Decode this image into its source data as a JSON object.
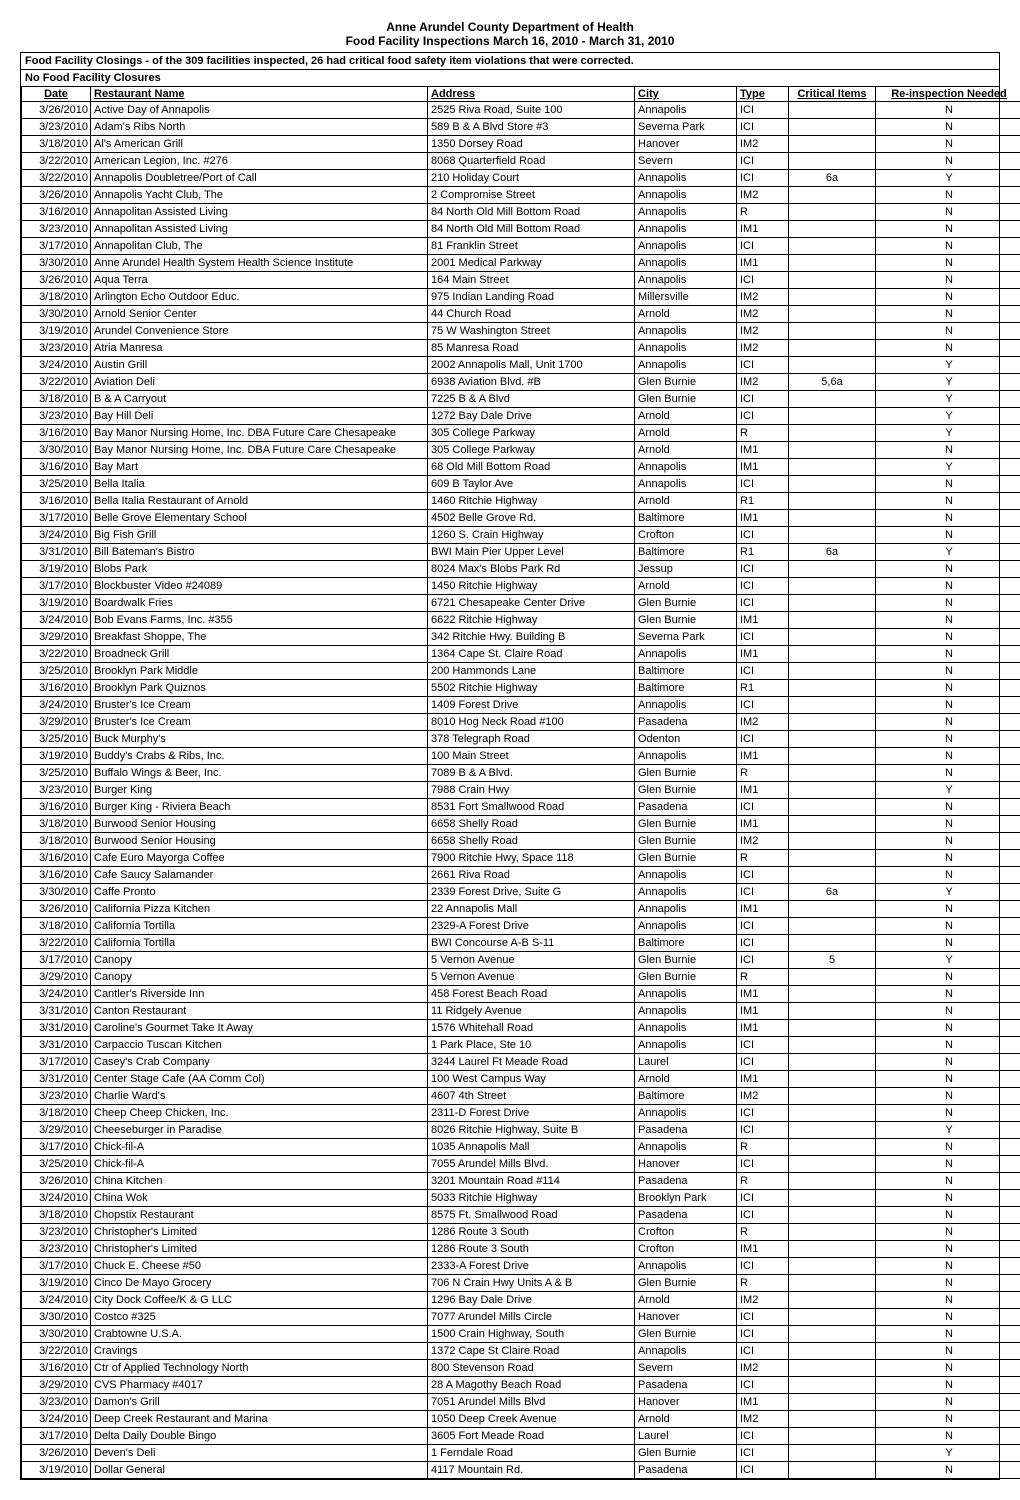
{
  "header": {
    "title1": "Anne Arundel County Department of Health",
    "title2": "Food Facility Inspections March 16, 2010 - March 31, 2010",
    "closings": "Food Facility Closings - of the 309 facilities inspected, 26 had critical food safety item violations that were corrected.",
    "noclose": "No Food Facility Closures"
  },
  "columns": {
    "date": "Date",
    "name": "Restaurant Name",
    "addr": "Address",
    "city": "City",
    "type": "Type",
    "crit": "Critical Items",
    "reinsp": "Re-inspection Needed"
  },
  "rows": [
    [
      "3/26/2010",
      "Active Day of Annapolis",
      "2525 Riva Road, Suite 100",
      "Annapolis",
      "ICI",
      "",
      "N"
    ],
    [
      "3/23/2010",
      "Adam's Ribs North",
      "589 B & A Blvd Store #3",
      "Severna Park",
      "ICI",
      "",
      "N"
    ],
    [
      "3/18/2010",
      "Al's American Grill",
      "1350 Dorsey Road",
      "Hanover",
      "IM2",
      "",
      "N"
    ],
    [
      "3/22/2010",
      "American Legion, Inc. #276",
      "8068 Quarterfield Road",
      "Severn",
      "ICI",
      "",
      "N"
    ],
    [
      "3/22/2010",
      "Annapolis Doubletree/Port of  Call",
      "210 Holiday Court",
      "Annapolis",
      "ICI",
      "6a",
      "Y"
    ],
    [
      "3/26/2010",
      "Annapolis Yacht Club, The",
      "2 Compromise Street",
      "Annapolis",
      "IM2",
      "",
      "N"
    ],
    [
      "3/16/2010",
      "Annapolitan Assisted Living",
      "84 North Old Mill Bottom Road",
      "Annapolis",
      "R",
      "",
      "N"
    ],
    [
      "3/23/2010",
      "Annapolitan Assisted Living",
      "84 North Old Mill Bottom Road",
      "Annapolis",
      "IM1",
      "",
      "N"
    ],
    [
      "3/17/2010",
      "Annapolitan Club, The",
      "81 Franklin Street",
      "Annapolis",
      "ICI",
      "",
      "N"
    ],
    [
      "3/30/2010",
      "Anne Arundel Health System Health Science Institute",
      "2001 Medical Parkway",
      "Annapolis",
      "IM1",
      "",
      "N"
    ],
    [
      "3/26/2010",
      "Aqua Terra",
      "164 Main Street",
      "Annapolis",
      "ICI",
      "",
      "N"
    ],
    [
      "3/18/2010",
      "Arlington Echo Outdoor Educ.",
      "975 Indian Landing Road",
      "Millersville",
      "IM2",
      "",
      "N"
    ],
    [
      "3/30/2010",
      "Arnold Senior Center",
      "44 Church Road",
      "Arnold",
      "IM2",
      "",
      "N"
    ],
    [
      "3/19/2010",
      "Arundel Convenience Store",
      "75 W Washington Street",
      "Annapolis",
      "IM2",
      "",
      "N"
    ],
    [
      "3/23/2010",
      "Atria Manresa",
      "85 Manresa Road",
      "Annapolis",
      "IM2",
      "",
      "N"
    ],
    [
      "3/24/2010",
      "Austin Grill",
      "2002 Annapolis Mall, Unit 1700",
      "Annapolis",
      "ICI",
      "",
      "Y"
    ],
    [
      "3/22/2010",
      "Aviation Deli",
      "6938 Aviation Blvd. #B",
      "Glen Burnie",
      "IM2",
      "5,6a",
      "Y"
    ],
    [
      "3/18/2010",
      "B & A Carryout",
      "7225 B & A Blvd",
      "Glen Burnie",
      "ICI",
      "",
      "Y"
    ],
    [
      "3/23/2010",
      "Bay Hill Deli",
      "1272 Bay Dale Drive",
      "Arnold",
      "ICI",
      "",
      "Y"
    ],
    [
      "3/16/2010",
      "Bay Manor Nursing Home, Inc. DBA Future Care Chesapeake",
      "305 College Parkway",
      "Arnold",
      "R",
      "",
      "Y"
    ],
    [
      "3/30/2010",
      "Bay Manor Nursing Home, Inc. DBA Future Care Chesapeake",
      "305 College Parkway",
      "Arnold",
      "IM1",
      "",
      "N"
    ],
    [
      "3/16/2010",
      "Bay Mart",
      "68 Old Mill Bottom Road",
      "Annapolis",
      "IM1",
      "",
      "Y"
    ],
    [
      "3/25/2010",
      "Bella Italia",
      "609 B Taylor Ave",
      "Annapolis",
      "ICI",
      "",
      "N"
    ],
    [
      "3/16/2010",
      "Bella Italia Restaurant of Arnold",
      "1460 Ritchie Highway",
      "Arnold",
      "R1",
      "",
      "N"
    ],
    [
      "3/17/2010",
      "Belle Grove Elementary School",
      "4502 Belle Grove Rd.",
      "Baltimore",
      "IM1",
      "",
      "N"
    ],
    [
      "3/24/2010",
      "Big Fish Grill",
      "1260 S. Crain Highway",
      "Crofton",
      "ICI",
      "",
      "N"
    ],
    [
      "3/31/2010",
      "Bill Bateman's Bistro",
      "BWI Main Pier Upper Level",
      "Baltimore",
      "R1",
      "6a",
      "Y"
    ],
    [
      "3/19/2010",
      "Blobs Park",
      "8024 Max's Blobs Park Rd",
      "Jessup",
      "ICI",
      "",
      "N"
    ],
    [
      "3/17/2010",
      "Blockbuster Video #24089",
      "1450 Ritchie Highway",
      "Arnold",
      "ICI",
      "",
      "N"
    ],
    [
      "3/19/2010",
      "Boardwalk Fries",
      "6721 Chesapeake Center Drive",
      "Glen Burnie",
      "ICI",
      "",
      "N"
    ],
    [
      "3/24/2010",
      "Bob Evans Farms, Inc. #355",
      "6622 Ritchie Highway",
      "Glen Burnie",
      "IM1",
      "",
      "N"
    ],
    [
      "3/29/2010",
      "Breakfast Shoppe, The",
      "342 Ritchie Hwy. Building B",
      "Severna Park",
      "ICI",
      "",
      "N"
    ],
    [
      "3/22/2010",
      "Broadneck Grill",
      "1364 Cape St. Claire Road",
      "Annapolis",
      "IM1",
      "",
      "N"
    ],
    [
      "3/25/2010",
      "Brooklyn Park Middle",
      "200 Hammonds Lane",
      "Baltimore",
      "ICI",
      "",
      "N"
    ],
    [
      "3/16/2010",
      "Brooklyn Park Quiznos",
      "5502 Ritchie Highway",
      "Baltimore",
      "R1",
      "",
      "N"
    ],
    [
      "3/24/2010",
      "Bruster's Ice Cream",
      "1409 Forest Drive",
      "Annapolis",
      "ICI",
      "",
      "N"
    ],
    [
      "3/29/2010",
      "Bruster's Ice Cream",
      "8010 Hog Neck Road #100",
      "Pasadena",
      "IM2",
      "",
      "N"
    ],
    [
      "3/25/2010",
      "Buck Murphy's",
      "378 Telegraph Road",
      "Odenton",
      "ICI",
      "",
      "N"
    ],
    [
      "3/19/2010",
      "Buddy's Crabs & Ribs, Inc.",
      "100 Main Street",
      "Annapolis",
      "IM1",
      "",
      "N"
    ],
    [
      "3/25/2010",
      "Buffalo Wings & Beer, Inc.",
      "7089 B & A Blvd.",
      "Glen Burnie",
      "R",
      "",
      "N"
    ],
    [
      "3/23/2010",
      "Burger King",
      "7988 Crain Hwy",
      "Glen Burnie",
      "IM1",
      "",
      "Y"
    ],
    [
      "3/16/2010",
      "Burger King - Riviera Beach",
      "8531 Fort Smallwood Road",
      "Pasadena",
      "ICI",
      "",
      "N"
    ],
    [
      "3/18/2010",
      "Burwood Senior Housing",
      "6658 Shelly Road",
      "Glen Burnie",
      "IM1",
      "",
      "N"
    ],
    [
      "3/18/2010",
      "Burwood Senior Housing",
      "6658 Shelly Road",
      "Glen Burnie",
      "IM2",
      "",
      "N"
    ],
    [
      "3/16/2010",
      "Cafe Euro Mayorga Coffee",
      "7900 Ritchie Hwy, Space 118",
      "Glen Burnie",
      "R",
      "",
      "N"
    ],
    [
      "3/16/2010",
      "Cafe Saucy Salamander",
      "2661 Riva Road",
      "Annapolis",
      "ICI",
      "",
      "N"
    ],
    [
      "3/30/2010",
      "Caffe Pronto",
      "2339 Forest Drive, Suite G",
      "Annapolis",
      "ICI",
      "6a",
      "Y"
    ],
    [
      "3/26/2010",
      "California Pizza Kitchen",
      "22 Annapolis Mall",
      "Annapolis",
      "IM1",
      "",
      "N"
    ],
    [
      "3/18/2010",
      "California Tortilla",
      "2329-A Forest Drive",
      "Annapolis",
      "ICI",
      "",
      "N"
    ],
    [
      "3/22/2010",
      "California Tortilla",
      "BWI Concourse A-B S-11",
      "Baltimore",
      "ICI",
      "",
      "N"
    ],
    [
      "3/17/2010",
      "Canopy",
      "5 Vernon Avenue",
      "Glen Burnie",
      "ICI",
      "5",
      "Y"
    ],
    [
      "3/29/2010",
      "Canopy",
      "5 Vernon Avenue",
      "Glen Burnie",
      "R",
      "",
      "N"
    ],
    [
      "3/24/2010",
      "Cantler's Riverside Inn",
      "458 Forest Beach Road",
      "Annapolis",
      "IM1",
      "",
      "N"
    ],
    [
      "3/31/2010",
      "Canton Restaurant",
      "11 Ridgely Avenue",
      "Annapolis",
      "IM1",
      "",
      "N"
    ],
    [
      "3/31/2010",
      "Caroline's Gourmet Take It Away",
      "1576 Whitehall Road",
      "Annapolis",
      "IM1",
      "",
      "N"
    ],
    [
      "3/31/2010",
      "Carpaccio Tuscan Kitchen",
      "1 Park Place, Ste 10",
      "Annapolis",
      "ICI",
      "",
      "N"
    ],
    [
      "3/17/2010",
      "Casey's Crab Company",
      "3244 Laurel Ft Meade Road",
      "Laurel",
      "ICI",
      "",
      "N"
    ],
    [
      "3/31/2010",
      "Center Stage Cafe (AA Comm Col)",
      "100 West Campus Way",
      "Arnold",
      "IM1",
      "",
      "N"
    ],
    [
      "3/23/2010",
      "Charlie Ward's",
      "4607 4th Street",
      "Baltimore",
      "IM2",
      "",
      "N"
    ],
    [
      "3/18/2010",
      "Cheep Cheep Chicken, Inc.",
      "2311-D Forest Drive",
      "Annapolis",
      "ICI",
      "",
      "N"
    ],
    [
      "3/29/2010",
      "Cheeseburger in Paradise",
      "8026 Ritchie Highway, Suite B",
      "Pasadena",
      "ICI",
      "",
      "Y"
    ],
    [
      "3/17/2010",
      "Chick-fil-A",
      "1035 Annapolis Mall",
      "Annapolis",
      "R",
      "",
      "N"
    ],
    [
      "3/25/2010",
      "Chick-fil-A",
      "7055 Arundel Mills Blvd.",
      "Hanover",
      "ICI",
      "",
      "N"
    ],
    [
      "3/26/2010",
      "China Kitchen",
      "3201 Mountain Road #114",
      "Pasadena",
      "R",
      "",
      "N"
    ],
    [
      "3/24/2010",
      "China Wok",
      "5033 Ritchie Highway",
      "Brooklyn Park",
      "ICI",
      "",
      "N"
    ],
    [
      "3/18/2010",
      "Chopstix Restaurant",
      "8575 Ft. Smallwood Road",
      "Pasadena",
      "ICI",
      "",
      "N"
    ],
    [
      "3/23/2010",
      "Christopher's Limited",
      "1286 Route 3 South",
      "Crofton",
      "R",
      "",
      "N"
    ],
    [
      "3/23/2010",
      "Christopher's Limited",
      "1286 Route 3 South",
      "Crofton",
      "IM1",
      "",
      "N"
    ],
    [
      "3/17/2010",
      "Chuck E. Cheese #50",
      "2333-A Forest Drive",
      "Annapolis",
      "ICI",
      "",
      "N"
    ],
    [
      "3/19/2010",
      "Cinco De Mayo Grocery",
      "706 N Crain Hwy Units A & B",
      "Glen Burnie",
      "R",
      "",
      "N"
    ],
    [
      "3/24/2010",
      "City Dock Coffee/K & G LLC",
      "1296 Bay Dale Drive",
      "Arnold",
      "IM2",
      "",
      "N"
    ],
    [
      "3/30/2010",
      "Costco #325",
      "7077 Arundel Mills Circle",
      "Hanover",
      "ICI",
      "",
      "N"
    ],
    [
      "3/30/2010",
      "Crabtowne U.S.A.",
      "1500 Crain Highway, South",
      "Glen Burnie",
      "ICI",
      "",
      "N"
    ],
    [
      "3/22/2010",
      "Cravings",
      "1372 Cape St Claire Road",
      "Annapolis",
      "ICI",
      "",
      "N"
    ],
    [
      "3/16/2010",
      "Ctr of Applied Technology North",
      "800 Stevenson Road",
      "Severn",
      "IM2",
      "",
      "N"
    ],
    [
      "3/29/2010",
      "CVS Pharmacy #4017",
      "28 A Magothy Beach Road",
      "Pasadena",
      "ICI",
      "",
      "N"
    ],
    [
      "3/23/2010",
      "Damon's Grill",
      "7051 Arundel Mills Blvd",
      "Hanover",
      "IM1",
      "",
      "N"
    ],
    [
      "3/24/2010",
      "Deep Creek Restaurant and Marina",
      "1050 Deep Creek Avenue",
      "Arnold",
      "IM2",
      "",
      "N"
    ],
    [
      "3/17/2010",
      "Delta Daily Double Bingo",
      "3605 Fort Meade Road",
      "Laurel",
      "ICI",
      "",
      "N"
    ],
    [
      "3/26/2010",
      "Deven's Deli",
      "1 Ferndale Road",
      "Glen Burnie",
      "ICI",
      "",
      "Y"
    ],
    [
      "3/19/2010",
      "Dollar General",
      "4117 Mountain Rd.",
      "Pasadena",
      "ICI",
      "",
      "N"
    ]
  ]
}
